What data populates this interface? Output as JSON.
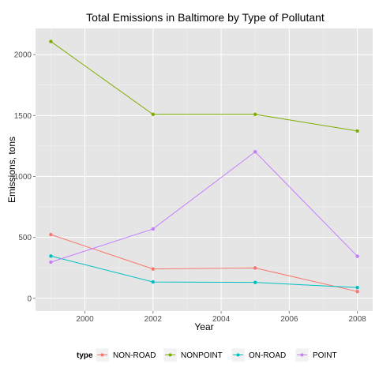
{
  "chart_data": {
    "type": "line",
    "title": "Total Emissions in Baltimore by Type of Pollutant",
    "xlabel": "Year",
    "ylabel": "Emissions, tons",
    "x": [
      1999,
      2002,
      2005,
      2008
    ],
    "xlim": [
      1998.55,
      2008.45
    ],
    "ylim": [
      -105,
      2215
    ],
    "xticks": [
      2000,
      2002,
      2004,
      2006,
      2008
    ],
    "yticks": [
      0,
      500,
      1000,
      1500,
      2000
    ],
    "grid": true,
    "legend_position": "bottom",
    "legend_title": "type",
    "background": "#e5e5e5",
    "series": [
      {
        "name": "NON-ROAD",
        "color": "#f8766d",
        "values": [
          522.9,
          240.8,
          248.9,
          55.8
        ]
      },
      {
        "name": "NONPOINT",
        "color": "#7cae00",
        "values": [
          2107.6,
          1509.5,
          1509.5,
          1373.2
        ]
      },
      {
        "name": "ON-ROAD",
        "color": "#00bfc4",
        "values": [
          346.8,
          134.3,
          130.4,
          88.3
        ]
      },
      {
        "name": "POINT",
        "color": "#c77cff",
        "values": [
          296.8,
          569.3,
          1202.5,
          344.98
        ]
      }
    ]
  }
}
